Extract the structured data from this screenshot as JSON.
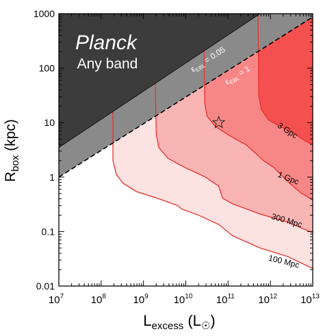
{
  "chart_data": {
    "type": "contour",
    "x_label": {
      "text": "L",
      "sub": "excess",
      "rest": " (L",
      "symbol": "☉",
      "end": ")"
    },
    "y_label": {
      "text": "R",
      "sub": "box",
      "rest": " (kpc)"
    },
    "xlim": [
      10000000,
      10000000000000
    ],
    "ylim": [
      0.01,
      1000
    ],
    "x_log": true,
    "y_log": true,
    "xticks": [
      {
        "value": 10000000,
        "label": "10",
        "exponent": "7"
      },
      {
        "value": 100000000,
        "label": "10",
        "exponent": "8"
      },
      {
        "value": 1000000000,
        "label": "10",
        "exponent": "9"
      },
      {
        "value": 10000000000,
        "label": "10",
        "exponent": "10"
      },
      {
        "value": 100000000000,
        "label": "10",
        "exponent": "11"
      },
      {
        "value": 1000000000000,
        "label": "10",
        "exponent": "12"
      },
      {
        "value": 10000000000000,
        "label": "10",
        "exponent": "13"
      }
    ],
    "yticks": [
      0.01,
      0.1,
      1,
      10,
      100,
      1000
    ],
    "excluded": {
      "label": "Planck",
      "sublabel": "Any band",
      "color": "#3c3c3c"
    },
    "limits": [
      {
        "label": "ε",
        "sub": "EBL",
        "rest": " = 0.05",
        "x": [
          10000000,
          570000000000
        ],
        "y": [
          3.5,
          1000
        ],
        "color": "#3c3c3c",
        "dashed": false
      },
      {
        "label": "ε",
        "sub": "EBL",
        "rest": " = 1",
        "x": [
          10000000,
          10000000000000
        ],
        "y": [
          1,
          870
        ],
        "color": "#8a8a8a",
        "dashed": true
      }
    ],
    "line_color": "#e8302a",
    "series": [
      {
        "name": "100 Mpc",
        "color": "#fde2e2",
        "x": [
          190000000,
          190000000,
          230000000,
          330000000,
          690000000,
          2100000000,
          6500000000,
          7900000000,
          20000000000,
          60000000000,
          130000000000,
          570000000000,
          2500000000000,
          10000000000000
        ],
        "y": [
          16,
          2,
          1.1,
          0.77,
          0.54,
          0.41,
          0.3,
          0.26,
          0.2,
          0.135,
          0.083,
          0.05,
          0.035,
          0.021
        ]
      },
      {
        "name": "300 Mpc",
        "color": "#f9b4b4",
        "x": [
          1900000000,
          2000000000,
          2300000000,
          3800000000,
          9500000000,
          29000000000,
          60000000000,
          74000000000,
          130000000000,
          570000000000,
          2500000000000,
          10000000000000
        ],
        "y": [
          54,
          6.3,
          3.5,
          2.2,
          1.5,
          1.0,
          0.68,
          0.41,
          0.32,
          0.21,
          0.15,
          0.095
        ]
      },
      {
        "name": "1 Gpc",
        "color": "#f78787",
        "x": [
          27000000000,
          28000000000,
          32000000000,
          50000000000,
          107000000000,
          270000000000,
          690000000000,
          1200000000000,
          2500000000000,
          5300000000000,
          10000000000000
        ],
        "y": [
          210,
          23,
          13,
          8.5,
          5.8,
          3.9,
          2.0,
          1.5,
          0.84,
          0.51,
          0.38
        ]
      },
      {
        "name": "3 Gpc",
        "color": "#f45050",
        "x": [
          510000000000,
          530000000000,
          610000000000,
          890000000000,
          1700000000000,
          3700000000000,
          6400000000000,
          10000000000000
        ],
        "y": [
          944,
          31,
          17.4,
          11.3,
          8.5,
          6.3,
          4.7,
          3.9
        ]
      }
    ],
    "marker": {
      "x": 60000000000,
      "y": 10
    }
  }
}
